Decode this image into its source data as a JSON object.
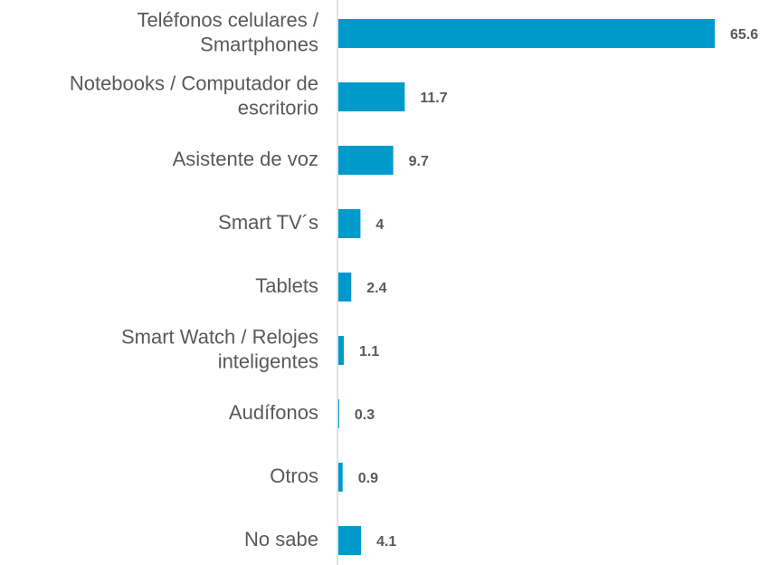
{
  "chart_data": {
    "type": "bar",
    "orientation": "horizontal",
    "categories": [
      [
        "Teléfonos celulares /",
        "Smartphones"
      ],
      [
        "Notebooks / Computador de",
        "escritorio"
      ],
      [
        "Asistente de voz"
      ],
      [
        "Smart TV´s"
      ],
      [
        "Tablets"
      ],
      [
        "Smart Watch / Relojes",
        "inteligentes"
      ],
      [
        "Audífonos"
      ],
      [
        "Otros"
      ],
      [
        "No sabe"
      ]
    ],
    "values": [
      65.6,
      11.7,
      9.7,
      4,
      2.4,
      1.1,
      0.3,
      0.9,
      4.1
    ],
    "color": "#0099cc"
  }
}
